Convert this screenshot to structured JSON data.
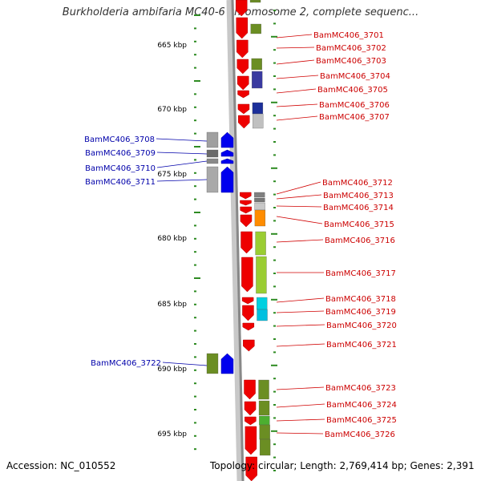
{
  "title": "Burkholderia ambifaria MC40-6 chromosome 2, complete sequenc...",
  "footer": {
    "accession": "Accession: NC_010552",
    "topology": "Topology: circular; Length: 2,769,414 bp; Genes: 2,391"
  },
  "colors": {
    "backbone": "#888888",
    "forward_strand": "#ee0000",
    "reverse_strand": "#0000ee",
    "tick": "#2e8b22",
    "right_label": "#cc0000",
    "left_label": "#0000aa"
  },
  "ruler": {
    "unit": "kbp",
    "labels": [
      "665 kbp",
      "670 kbp",
      "675 kbp",
      "680 kbp",
      "685 kbp",
      "690 kbp",
      "695 kbp"
    ]
  },
  "genes_right": [
    {
      "id": "BamMC406_3701"
    },
    {
      "id": "BamMC406_3702"
    },
    {
      "id": "BamMC406_3703"
    },
    {
      "id": "BamMC406_3704"
    },
    {
      "id": "BamMC406_3705"
    },
    {
      "id": "BamMC406_3706"
    },
    {
      "id": "BamMC406_3707"
    },
    {
      "id": "BamMC406_3712"
    },
    {
      "id": "BamMC406_3713"
    },
    {
      "id": "BamMC406_3714"
    },
    {
      "id": "BamMC406_3715"
    },
    {
      "id": "BamMC406_3716"
    },
    {
      "id": "BamMC406_3717"
    },
    {
      "id": "BamMC406_3718"
    },
    {
      "id": "BamMC406_3719"
    },
    {
      "id": "BamMC406_3720"
    },
    {
      "id": "BamMC406_3721"
    },
    {
      "id": "BamMC406_3723"
    },
    {
      "id": "BamMC406_3724"
    },
    {
      "id": "BamMC406_3725"
    },
    {
      "id": "BamMC406_3726"
    }
  ],
  "genes_left": [
    {
      "id": "BamMC406_3708"
    },
    {
      "id": "BamMC406_3709"
    },
    {
      "id": "BamMC406_3710"
    },
    {
      "id": "BamMC406_3711"
    },
    {
      "id": "BamMC406_3722"
    }
  ]
}
